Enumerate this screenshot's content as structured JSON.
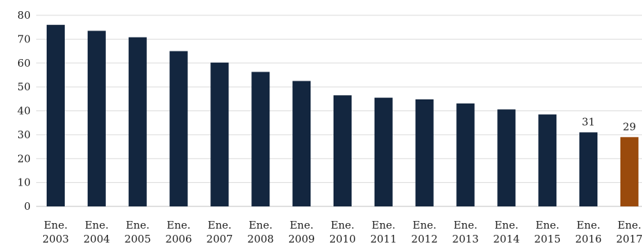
{
  "chart_data": {
    "type": "bar",
    "categories": [
      [
        "Ene.",
        "2003"
      ],
      [
        "Ene.",
        "2004"
      ],
      [
        "Ene.",
        "2005"
      ],
      [
        "Ene.",
        "2006"
      ],
      [
        "Ene.",
        "2007"
      ],
      [
        "Ene.",
        "2008"
      ],
      [
        "Ene.",
        "2009"
      ],
      [
        "Ene.",
        "2010"
      ],
      [
        "Ene.",
        "2011"
      ],
      [
        "Ene.",
        "2012"
      ],
      [
        "Ene.",
        "2013"
      ],
      [
        "Ene.",
        "2014"
      ],
      [
        "Ene.",
        "2015"
      ],
      [
        "Ene.",
        "2016"
      ],
      [
        "Ene.",
        "2017"
      ]
    ],
    "values": [
      76,
      73.5,
      70.8,
      65,
      60.2,
      56.3,
      52.5,
      46.5,
      45.5,
      44.8,
      43.1,
      40.6,
      38.5,
      31,
      29
    ],
    "data_labels": [
      "",
      "",
      "",
      "",
      "",
      "",
      "",
      "",
      "",
      "",
      "",
      "",
      "",
      "31",
      "29"
    ],
    "bar_colors": [
      "#13263f",
      "#13263f",
      "#13263f",
      "#13263f",
      "#13263f",
      "#13263f",
      "#13263f",
      "#13263f",
      "#13263f",
      "#13263f",
      "#13263f",
      "#13263f",
      "#13263f",
      "#13263f",
      "#9a4a0c"
    ],
    "title": "",
    "xlabel": "",
    "ylabel": "",
    "ylim": [
      0,
      80
    ],
    "yticks": [
      "0",
      "10",
      "20",
      "30",
      "40",
      "50",
      "60",
      "70",
      "80"
    ],
    "grid": true,
    "legend": "none"
  }
}
